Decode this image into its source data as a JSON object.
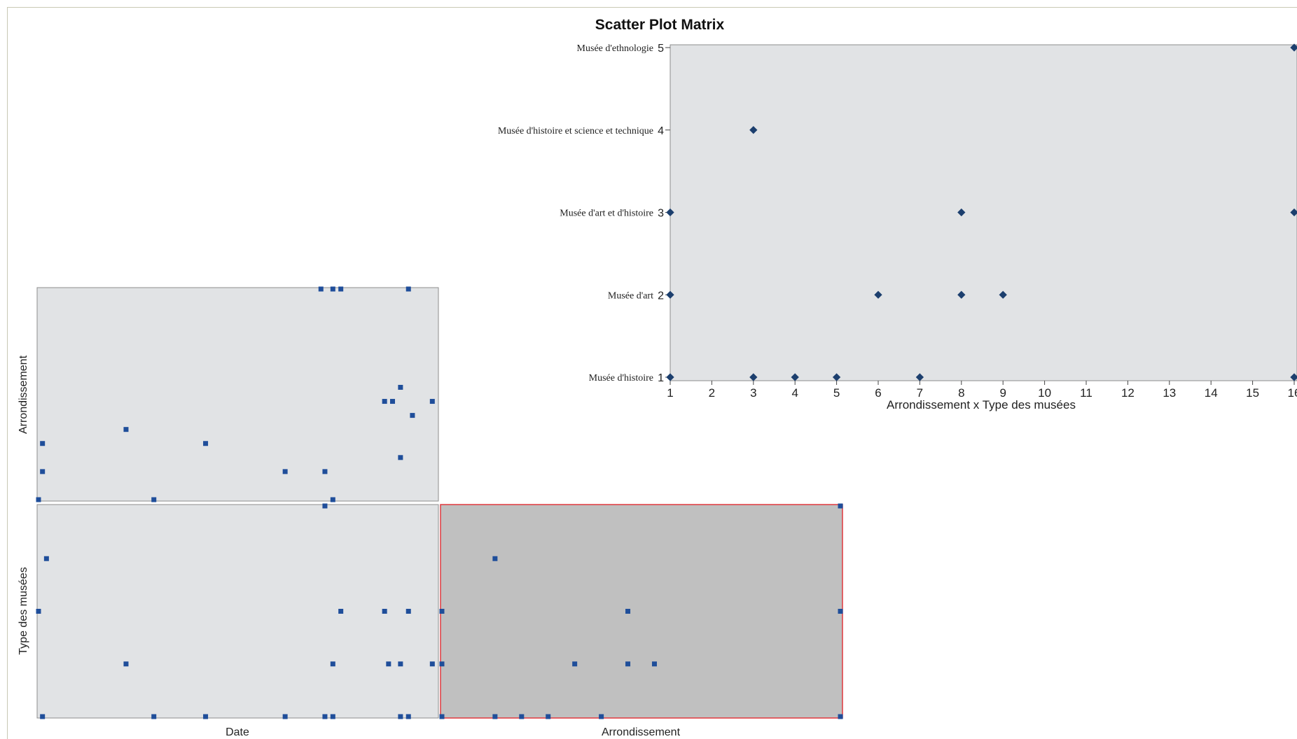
{
  "chart_data": {
    "type": "scatter",
    "title": "Scatter Plot Matrix",
    "variables": [
      "Date",
      "Arrondissement",
      "Type des musées"
    ],
    "colors": {
      "point": "#1f4e9a",
      "zoom_point": "#1c3f6e",
      "panel_bg": "#e1e3e5",
      "selected_bg": "#c0c0c0",
      "selected_border": "#e0393e"
    },
    "zoom_panel": {
      "xlabel": "Arrondissement x Type des musées",
      "xlim": [
        1,
        16
      ],
      "ylim": [
        1,
        5
      ],
      "x_ticks": [
        "1",
        "2",
        "3",
        "4",
        "5",
        "6",
        "7",
        "8",
        "9",
        "10",
        "11",
        "12",
        "13",
        "14",
        "15",
        "16"
      ],
      "y_ticks": [
        {
          "value": 1,
          "label": "Musée d'histoire"
        },
        {
          "value": 2,
          "label": "Musée d'art"
        },
        {
          "value": 3,
          "label": "Musée d'art et d'histoire"
        },
        {
          "value": 4,
          "label": "Musée d'histoire et science et technique"
        },
        {
          "value": 5,
          "label": "Musée d'ethnologie"
        }
      ],
      "points": [
        [
          1,
          1
        ],
        [
          3,
          1
        ],
        [
          4,
          1
        ],
        [
          5,
          1
        ],
        [
          7,
          1
        ],
        [
          16,
          1
        ],
        [
          1,
          2
        ],
        [
          6,
          2
        ],
        [
          8,
          2
        ],
        [
          9,
          2
        ],
        [
          1,
          3
        ],
        [
          8,
          3
        ],
        [
          16,
          3
        ],
        [
          3,
          4
        ],
        [
          16,
          5
        ]
      ]
    },
    "matrix_panels": [
      {
        "id": "date-vs-arrondissement",
        "xvar": "Date",
        "yvar": "Arrondissement",
        "xlim": [
          0,
          100
        ],
        "ylim": [
          1,
          16
        ],
        "points": [
          [
            0,
            1
          ],
          [
            29,
            1
          ],
          [
            74,
            1
          ],
          [
            1,
            3
          ],
          [
            62,
            3
          ],
          [
            72,
            3
          ],
          [
            1,
            5
          ],
          [
            42,
            5
          ],
          [
            91,
            4
          ],
          [
            22,
            6
          ],
          [
            94,
            7
          ],
          [
            87,
            8
          ],
          [
            89,
            8
          ],
          [
            99,
            8
          ],
          [
            91,
            9
          ],
          [
            71,
            16
          ],
          [
            74,
            16
          ],
          [
            76,
            16
          ],
          [
            93,
            16
          ]
        ]
      },
      {
        "id": "date-vs-type",
        "xvar": "Date",
        "yvar": "Type des musées",
        "xlim": [
          0,
          100
        ],
        "ylim": [
          1,
          5
        ],
        "points": [
          [
            1,
            1
          ],
          [
            29,
            1
          ],
          [
            42,
            1
          ],
          [
            62,
            1
          ],
          [
            72,
            1
          ],
          [
            74,
            1
          ],
          [
            91,
            1
          ],
          [
            93,
            1
          ],
          [
            22,
            2
          ],
          [
            74,
            2
          ],
          [
            88,
            2
          ],
          [
            91,
            2
          ],
          [
            99,
            2
          ],
          [
            0,
            3
          ],
          [
            76,
            3
          ],
          [
            87,
            3
          ],
          [
            93,
            3
          ],
          [
            2,
            4
          ],
          [
            72,
            5
          ]
        ]
      },
      {
        "id": "arrondissement-vs-type",
        "xvar": "Arrondissement",
        "yvar": "Type des musées",
        "xlim": [
          1,
          16
        ],
        "ylim": [
          1,
          5
        ],
        "selected": true,
        "points": [
          [
            1,
            1
          ],
          [
            3,
            1
          ],
          [
            4,
            1
          ],
          [
            5,
            1
          ],
          [
            7,
            1
          ],
          [
            16,
            1
          ],
          [
            1,
            2
          ],
          [
            6,
            2
          ],
          [
            8,
            2
          ],
          [
            9,
            2
          ],
          [
            1,
            3
          ],
          [
            8,
            3
          ],
          [
            16,
            3
          ],
          [
            3,
            4
          ],
          [
            16,
            5
          ]
        ]
      }
    ]
  }
}
